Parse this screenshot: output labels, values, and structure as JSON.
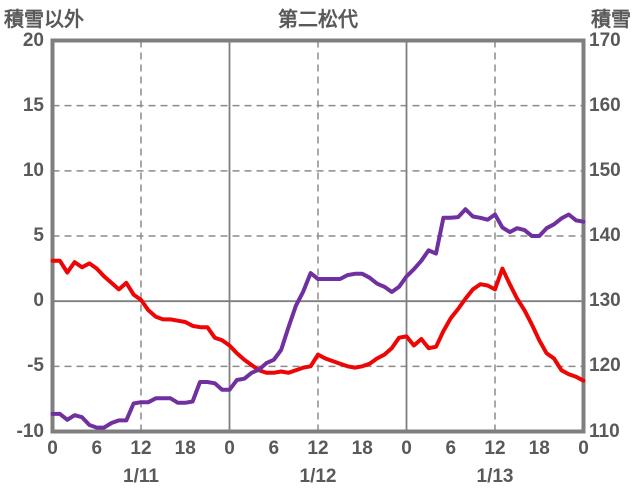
{
  "header": {
    "left_axis_title": "積雪以外",
    "title": "第二松代",
    "right_axis_title": "積雪"
  },
  "colors": {
    "text": "#595959",
    "grid_dashed": "#8c8c8c",
    "grid_solid": "#7f7f7f",
    "border": "#7f7f7f",
    "series_other": "#ee0505",
    "series_snow": "#7030a0"
  },
  "chart_data": {
    "type": "line",
    "title": "第二松代",
    "xlabel": "",
    "ylabel_left": "積雪以外",
    "ylabel_right": "積雪",
    "x_range": [
      0,
      72
    ],
    "x_step_hours": 1,
    "x_tick_interval_hours": 6,
    "x_tick_labels": [
      "0",
      "6",
      "12",
      "18",
      "0",
      "6",
      "12",
      "18",
      "0",
      "6",
      "12",
      "18",
      "0"
    ],
    "date_labels": [
      {
        "label": "1/11",
        "hour": 12
      },
      {
        "label": "1/12",
        "hour": 36
      },
      {
        "label": "1/13",
        "hour": 60
      }
    ],
    "left_axis": {
      "label": "積雪以外",
      "range": [
        -10,
        20
      ],
      "ticks": [
        20,
        15,
        10,
        5,
        0,
        -5,
        -10
      ]
    },
    "right_axis": {
      "label": "積雪",
      "range": [
        110,
        170
      ],
      "ticks": [
        170,
        160,
        150,
        140,
        130,
        120,
        110
      ]
    },
    "gridlines": {
      "horizontal_dashed_values_left": [
        15,
        10,
        5,
        -5
      ],
      "horizontal_solid_values_left": [
        0
      ],
      "vertical_dashed_hours": [
        12,
        36,
        60
      ],
      "vertical_solid_hours": [
        24,
        48
      ]
    },
    "legend": "none",
    "series": [
      {
        "name": "積雪以外",
        "axis": "left",
        "color": "#ee0505",
        "values": [
          3.1,
          3.1,
          2.2,
          3.0,
          2.6,
          2.9,
          2.5,
          1.9,
          1.4,
          0.9,
          1.4,
          0.5,
          0.1,
          -0.7,
          -1.2,
          -1.4,
          -1.4,
          -1.5,
          -1.6,
          -1.9,
          -2.0,
          -2.0,
          -2.8,
          -3.0,
          -3.4,
          -4.0,
          -4.5,
          -4.9,
          -5.3,
          -5.5,
          -5.5,
          -5.4,
          -5.5,
          -5.3,
          -5.1,
          -5.0,
          -4.1,
          -4.4,
          -4.6,
          -4.8,
          -5.0,
          -5.1,
          -5.0,
          -4.8,
          -4.4,
          -4.1,
          -3.6,
          -2.8,
          -2.7,
          -3.4,
          -2.9,
          -3.6,
          -3.5,
          -2.3,
          -1.3,
          -0.6,
          0.2,
          0.9,
          1.3,
          1.2,
          0.9,
          2.5,
          1.3,
          0.2,
          -0.7,
          -1.8,
          -3.0,
          -4.0,
          -4.4,
          -5.3,
          -5.6,
          -5.8,
          -6.1
        ]
      },
      {
        "name": "積雪",
        "axis": "right",
        "color": "#7030a0",
        "values": [
          112.7,
          112.7,
          111.8,
          112.5,
          112.2,
          111.0,
          110.6,
          110.6,
          111.3,
          111.7,
          111.7,
          114.3,
          114.5,
          114.5,
          115.1,
          115.1,
          115.1,
          114.4,
          114.4,
          114.6,
          117.6,
          117.6,
          117.4,
          116.4,
          116.4,
          117.9,
          118.1,
          119.0,
          119.5,
          120.5,
          121.0,
          122.5,
          126.0,
          129.3,
          131.5,
          134.3,
          133.4,
          133.4,
          133.4,
          133.4,
          134.0,
          134.2,
          134.2,
          133.6,
          132.7,
          132.2,
          131.4,
          132.2,
          133.8,
          134.9,
          136.2,
          137.8,
          137.3,
          142.8,
          142.8,
          142.9,
          144.1,
          143.0,
          142.8,
          142.5,
          143.3,
          141.3,
          140.6,
          141.2,
          140.9,
          140.0,
          140.0,
          141.2,
          141.8,
          142.7,
          143.3,
          142.4,
          142.2
        ]
      }
    ]
  }
}
